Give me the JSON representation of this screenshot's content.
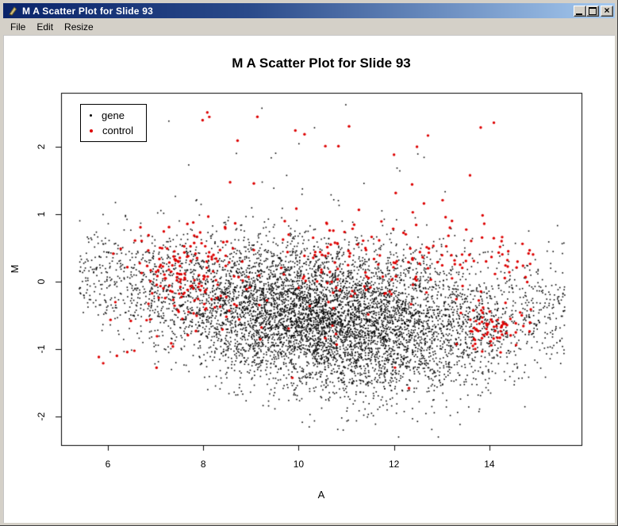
{
  "window": {
    "title": "M A Scatter Plot for Slide 93",
    "menu": [
      {
        "label": "File"
      },
      {
        "label": "Edit"
      },
      {
        "label": "Resize"
      }
    ]
  },
  "icons": {
    "window_icon": "pen",
    "minimize_icon": "underscore-bar",
    "maximize_icon": "square-outline",
    "close_glyph": "×"
  },
  "chart_data": {
    "type": "scatter",
    "title": "M A Scatter Plot for Slide 93",
    "xlabel": "A",
    "ylabel": "M",
    "xlim": [
      5.02,
      15.93
    ],
    "ylim": [
      -2.42,
      2.8
    ],
    "x_ticks": [
      6,
      8,
      10,
      12,
      14
    ],
    "y_ticks": [
      -2,
      -1,
      0,
      1,
      2
    ],
    "grid": false,
    "background": "#ffffff",
    "legend": {
      "position": "top-left",
      "items": [
        {
          "label": "gene",
          "color": "#000000"
        },
        {
          "label": "control",
          "color": "#dd0000"
        }
      ]
    },
    "seed": 930417,
    "series": [
      {
        "name": "gene",
        "color": "#000000",
        "marker": "point",
        "marker_px": 1.6,
        "count": 7000,
        "gen": {
          "x_range": [
            5.4,
            15.6
          ],
          "bell_weight": 0.78,
          "mean_curve": [
            [
              5.4,
              0.12
            ],
            [
              7,
              -0.12
            ],
            [
              9,
              -0.42
            ],
            [
              11,
              -0.58
            ],
            [
              13,
              -0.66
            ],
            [
              14.5,
              -0.55
            ],
            [
              15.6,
              -0.3
            ]
          ],
          "sd_curve": [
            [
              5.4,
              0.36
            ],
            [
              8,
              0.5
            ],
            [
              12,
              0.56
            ],
            [
              15.6,
              0.4
            ]
          ],
          "m_clamp": [
            -2.3,
            2.75
          ],
          "outliers": {
            "count": 18,
            "x_range": [
              6.5,
              13.5
            ],
            "m_range": [
              1.1,
              2.72
            ]
          }
        }
      },
      {
        "name": "control",
        "color": "#dd0000",
        "marker": "dot",
        "marker_px": 3.4,
        "count": 430,
        "gen": {
          "components": [
            {
              "count": 150,
              "x": {
                "type": "bell",
                "range": [
                  5.45,
                  9.6
                ]
              },
              "m": {
                "type": "gauss",
                "mean": 0.12,
                "sd": 0.34
              }
            },
            {
              "count": 130,
              "x": {
                "type": "uniform",
                "range": [
                  9.6,
                  14.9
                ]
              },
              "m": {
                "type": "gauss",
                "mean": 0.35,
                "sd": 0.3
              }
            },
            {
              "count": 60,
              "x": {
                "type": "gauss",
                "mean": 14.0,
                "sd": 0.3
              },
              "m": {
                "type": "gauss",
                "mean": -0.68,
                "sd": 0.16
              }
            },
            {
              "count": 60,
              "x": {
                "type": "uniform",
                "range": [
                  7.5,
                  15.2
                ]
              },
              "m": {
                "type": "gauss",
                "mean": -0.3,
                "sd": 0.55
              }
            },
            {
              "count": 22,
              "x": {
                "type": "uniform",
                "range": [
                  7.7,
                  14.6
                ]
              },
              "m": {
                "type": "uniform",
                "range": [
                  1.05,
                  2.6
                ]
              }
            },
            {
              "count": 8,
              "x": {
                "type": "uniform",
                "range": [
                  5.5,
                  7.5
                ]
              },
              "m": {
                "type": "uniform",
                "range": [
                  -1.6,
                  -0.9
                ]
              }
            }
          ]
        }
      }
    ]
  }
}
